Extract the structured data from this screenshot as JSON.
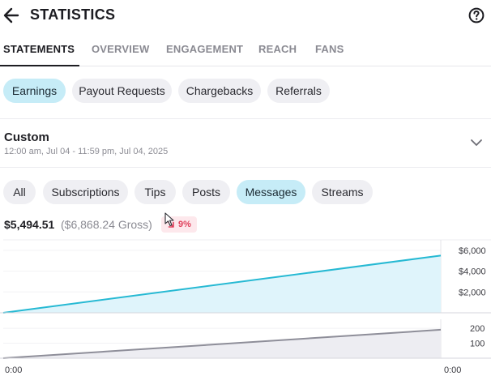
{
  "header": {
    "title": "STATISTICS",
    "back_icon": "arrow-left-icon",
    "help_icon": "help-circle-icon"
  },
  "tabs": [
    {
      "label": "STATEMENTS",
      "active": true
    },
    {
      "label": "OVERVIEW",
      "active": false
    },
    {
      "label": "ENGAGEMENT",
      "active": false
    },
    {
      "label": "REACH",
      "active": false
    },
    {
      "label": "FANS",
      "active": false
    }
  ],
  "statement_types": [
    {
      "label": "Earnings",
      "selected": true
    },
    {
      "label": "Payout Requests",
      "selected": false
    },
    {
      "label": "Chargebacks",
      "selected": false
    },
    {
      "label": "Referrals",
      "selected": false
    }
  ],
  "period": {
    "label": "Custom",
    "range": "12:00 am, Jul 04 - 11:59 pm, Jul 04, 2025",
    "chevron_icon": "chevron-down-icon"
  },
  "filters": [
    {
      "label": "All",
      "selected": false
    },
    {
      "label": "Subscriptions",
      "selected": false
    },
    {
      "label": "Tips",
      "selected": false
    },
    {
      "label": "Posts",
      "selected": false
    },
    {
      "label": "Messages",
      "selected": true
    },
    {
      "label": "Streams",
      "selected": false
    }
  ],
  "summary": {
    "net": "$5,494.51",
    "gross": "($6,868.24 Gross)",
    "change": "9%",
    "change_direction": "down",
    "change_color": "#e0425d"
  },
  "colors": {
    "accent": "#26b9d3",
    "selected_pill": "#c6ecf7",
    "secondary_line": "#8e8e99"
  },
  "chart_data": [
    {
      "type": "area",
      "x_labels": [
        "0:00",
        "0:00"
      ],
      "y_ticks": [
        "$6,000",
        "$4,000",
        "$2,000"
      ],
      "ylim": [
        0,
        7000
      ],
      "series": [
        {
          "x": [
            0,
            1
          ],
          "values": [
            0,
            5494.51
          ]
        }
      ],
      "grid": true
    },
    {
      "type": "area",
      "y_ticks": [
        "200",
        "100"
      ],
      "ylim": [
        0,
        260
      ],
      "series": [
        {
          "x": [
            0,
            1
          ],
          "values": [
            0,
            190
          ]
        }
      ],
      "grid": true
    }
  ]
}
